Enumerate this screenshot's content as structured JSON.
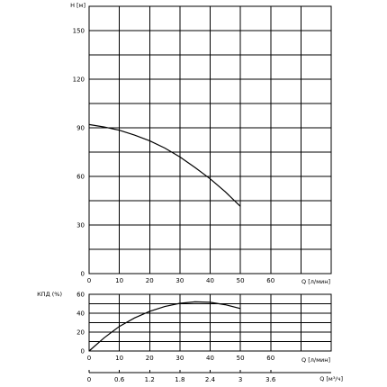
{
  "chart_data": [
    {
      "type": "line",
      "name": "head-curve",
      "xlabel": "Q [л/мин]",
      "ylabel": "H [м]",
      "x_ticks": [
        0,
        10,
        20,
        30,
        40,
        50,
        60
      ],
      "y_ticks": [
        0,
        30,
        60,
        90,
        120,
        150
      ],
      "xlim": [
        0,
        80
      ],
      "ylim": [
        0,
        165
      ],
      "grid": true,
      "series": [
        {
          "x": [
            0,
            5,
            10,
            15,
            20,
            25,
            30,
            35,
            40,
            45,
            50
          ],
          "y": [
            92,
            90.5,
            88.5,
            85.5,
            82,
            77.5,
            72,
            65.5,
            58.5,
            50.5,
            41.5
          ]
        }
      ]
    },
    {
      "type": "line",
      "name": "efficiency-curve",
      "xlabel": "Q [л/мин]",
      "ylabel": "КПД (%)",
      "x_ticks": [
        0,
        10,
        20,
        30,
        40,
        50,
        60
      ],
      "y_ticks": [
        0,
        20,
        40,
        60
      ],
      "xlim": [
        0,
        80
      ],
      "ylim": [
        0,
        60
      ],
      "grid": true,
      "series": [
        {
          "x": [
            0,
            5,
            10,
            15,
            20,
            25,
            30,
            35,
            40,
            45,
            50
          ],
          "y": [
            0,
            14,
            26,
            35,
            42,
            47,
            50.5,
            52,
            51.5,
            49,
            45
          ]
        }
      ]
    },
    {
      "type": "axis",
      "name": "secondary-flow-axis",
      "xlabel": "Q [м³/ч]",
      "x_ticks": [
        "0",
        "0.6",
        "1.2",
        "1.8",
        "2.4",
        "3",
        "3.6"
      ]
    }
  ]
}
